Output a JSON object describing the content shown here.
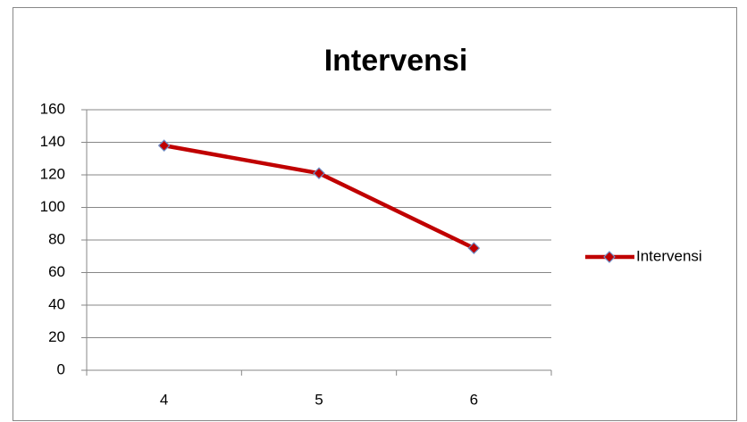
{
  "chart_data": {
    "type": "line",
    "title": "Intervensi",
    "categories": [
      "4",
      "5",
      "6"
    ],
    "series": [
      {
        "name": "Intervensi",
        "color": "#c00000",
        "values": [
          138,
          121,
          75
        ]
      }
    ],
    "ylim": [
      0,
      160
    ],
    "yticks": [
      0,
      20,
      40,
      60,
      80,
      100,
      120,
      140,
      160
    ],
    "grid": true,
    "legend": "right"
  }
}
